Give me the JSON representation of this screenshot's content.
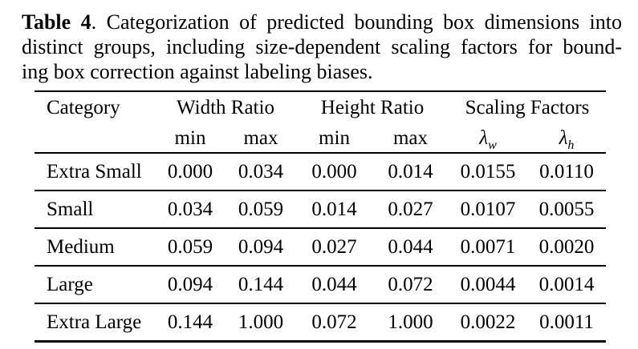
{
  "caption": {
    "bold_label": "Table 4",
    "line1_rest": ". Categorization of predicted bounding box dimensions into",
    "line2": "distinct groups, including size-dependent scaling factors for bound-",
    "line3": "ing box correction against labeling biases."
  },
  "table": {
    "columns": {
      "category": "Category",
      "group_width": "Width Ratio",
      "group_height": "Height Ratio",
      "group_scaling": "Scaling Factors",
      "sub_min": "min",
      "sub_max": "max",
      "lambda_symbol": "λ",
      "lambda_w_sub": "w",
      "lambda_h_sub": "h"
    },
    "rows": [
      {
        "category": "Extra Small",
        "w_min": "0.000",
        "w_max": "0.034",
        "h_min": "0.000",
        "h_max": "0.014",
        "lambda_w": "0.0155",
        "lambda_h": "0.0110"
      },
      {
        "category": "Small",
        "w_min": "0.034",
        "w_max": "0.059",
        "h_min": "0.014",
        "h_max": "0.027",
        "lambda_w": "0.0107",
        "lambda_h": "0.0055"
      },
      {
        "category": "Medium",
        "w_min": "0.059",
        "w_max": "0.094",
        "h_min": "0.027",
        "h_max": "0.044",
        "lambda_w": "0.0071",
        "lambda_h": "0.0020"
      },
      {
        "category": "Large",
        "w_min": "0.094",
        "w_max": "0.144",
        "h_min": "0.044",
        "h_max": "0.072",
        "lambda_w": "0.0044",
        "lambda_h": "0.0014"
      },
      {
        "category": "Extra Large",
        "w_min": "0.144",
        "w_max": "1.000",
        "h_min": "0.072",
        "h_max": "1.000",
        "lambda_w": "0.0022",
        "lambda_h": "0.0011"
      }
    ]
  }
}
